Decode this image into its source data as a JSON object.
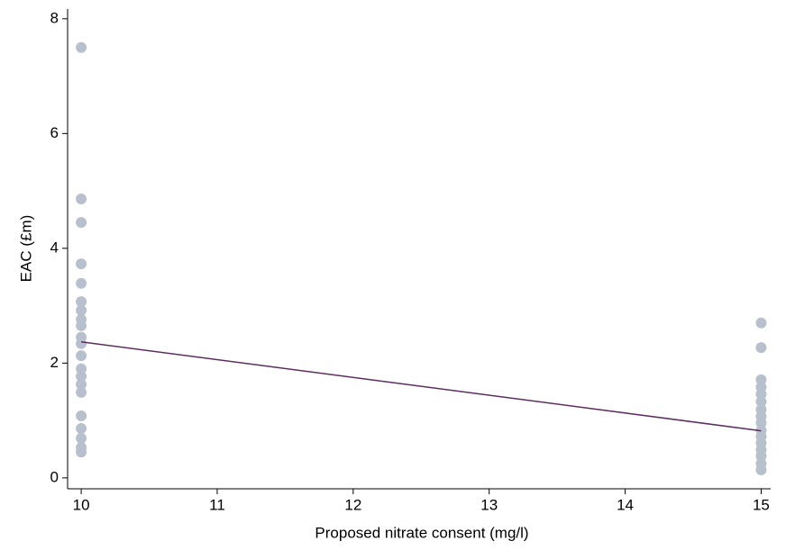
{
  "chart_data": {
    "type": "scatter",
    "xlabel": "Proposed nitrate consent (mg/l)",
    "ylabel": "EAC (£m)",
    "xlim": [
      9.9,
      15.07
    ],
    "ylim": [
      -0.19,
      8.17
    ],
    "xticks": [
      10,
      11,
      12,
      13,
      14,
      15
    ],
    "yticks": [
      0,
      2,
      4,
      6,
      8
    ],
    "series": [
      {
        "type": "scatter",
        "color": "#b8c0ce",
        "x": [
          10,
          10,
          10,
          10,
          10,
          10,
          10,
          10,
          10,
          10,
          10,
          10,
          10,
          10,
          10,
          10,
          10,
          10,
          10,
          10,
          10,
          15,
          15,
          15,
          15,
          15,
          15,
          15,
          15,
          15,
          15,
          15,
          15,
          15,
          15,
          15,
          15
        ],
        "values": [
          7.5,
          4.86,
          4.45,
          3.73,
          3.39,
          3.07,
          2.92,
          2.76,
          2.65,
          2.45,
          2.34,
          2.13,
          1.9,
          1.77,
          1.63,
          1.49,
          1.08,
          0.86,
          0.69,
          0.53,
          0.45,
          2.7,
          2.27,
          1.71,
          1.58,
          1.46,
          1.33,
          1.19,
          1.07,
          0.96,
          0.83,
          0.72,
          0.61,
          0.49,
          0.38,
          0.25,
          0.14
        ]
      },
      {
        "type": "line",
        "color": "#5c2d5e",
        "x": [
          10,
          15
        ],
        "values": [
          2.37,
          0.82
        ]
      }
    ]
  }
}
